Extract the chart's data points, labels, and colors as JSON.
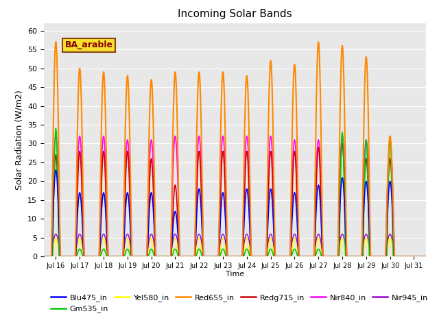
{
  "title": "Incoming Solar Bands",
  "xlabel": "Time",
  "ylabel": "Solar Radiation (W/m2)",
  "ylim": [
    0,
    62
  ],
  "yticks": [
    0,
    5,
    10,
    15,
    20,
    25,
    30,
    35,
    40,
    45,
    50,
    55,
    60
  ],
  "annotation_text": "BA_arable",
  "background_color": "#e8e8e8",
  "fig_background": "#ffffff",
  "date_start": 15.5,
  "date_end": 31.5,
  "peaks_orange": [
    57,
    50,
    49,
    48,
    47,
    49,
    49,
    49,
    48,
    52,
    51,
    57,
    56,
    53,
    32,
    0
  ],
  "peaks_blue": [
    23,
    17,
    17,
    17,
    17,
    12,
    18,
    17,
    18,
    18,
    17,
    19,
    21,
    20,
    20,
    0
  ],
  "peaks_green": [
    34,
    2,
    2,
    2,
    2,
    2,
    2,
    2,
    2,
    2,
    2,
    2,
    33,
    31,
    31,
    0
  ],
  "peaks_red": [
    27,
    28,
    28,
    28,
    26,
    19,
    28,
    28,
    28,
    28,
    28,
    29,
    30,
    26,
    26,
    0
  ],
  "peaks_mag": [
    32,
    32,
    32,
    31,
    31,
    32,
    32,
    32,
    32,
    32,
    31,
    31,
    32,
    31,
    31,
    0
  ],
  "peaks_purp": [
    6,
    6,
    6,
    6,
    6,
    6,
    6,
    6,
    6,
    6,
    6,
    6,
    6,
    6,
    6,
    0
  ],
  "peaks_yel": [
    5,
    5,
    5,
    5,
    5,
    5,
    5,
    5,
    5,
    5,
    5,
    5,
    5,
    5,
    5,
    0
  ],
  "series_colors": {
    "orange": "#ff8800",
    "blue": "#0000ff",
    "green": "#00cc00",
    "red": "#cc0000",
    "mag": "#ff00ff",
    "purp": "#9900cc",
    "yel": "#ffff00"
  },
  "legend_entries": [
    {
      "label": "Blu475_in",
      "color": "#0000ff"
    },
    {
      "label": "Gm535_in",
      "color": "#00cc00"
    },
    {
      "label": "Yel580_in",
      "color": "#ffff00"
    },
    {
      "label": "Red655_in",
      "color": "#ff8800"
    },
    {
      "label": "Redg715_in",
      "color": "#cc0000"
    },
    {
      "label": "Nir840_in",
      "color": "#ff00ff"
    },
    {
      "label": "Nir945_in",
      "color": "#9900cc"
    }
  ]
}
